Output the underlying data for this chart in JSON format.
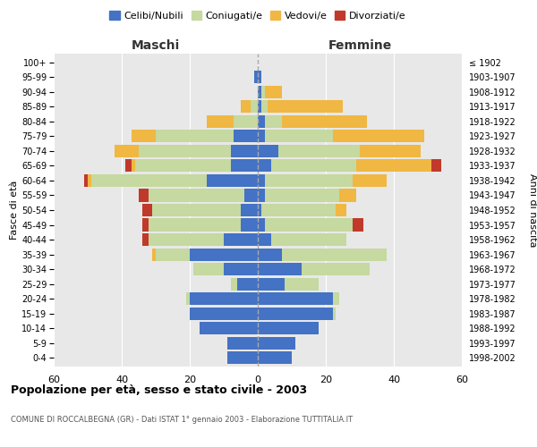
{
  "age_groups": [
    "0-4",
    "5-9",
    "10-14",
    "15-19",
    "20-24",
    "25-29",
    "30-34",
    "35-39",
    "40-44",
    "45-49",
    "50-54",
    "55-59",
    "60-64",
    "65-69",
    "70-74",
    "75-79",
    "80-84",
    "85-89",
    "90-94",
    "95-99",
    "100+"
  ],
  "birth_years": [
    "1998-2002",
    "1993-1997",
    "1988-1992",
    "1983-1987",
    "1978-1982",
    "1973-1977",
    "1968-1972",
    "1963-1967",
    "1958-1962",
    "1953-1957",
    "1948-1952",
    "1943-1947",
    "1938-1942",
    "1933-1937",
    "1928-1932",
    "1923-1927",
    "1918-1922",
    "1913-1917",
    "1908-1912",
    "1903-1907",
    "≤ 1902"
  ],
  "maschi": {
    "celibi": [
      9,
      9,
      17,
      20,
      20,
      6,
      10,
      20,
      10,
      5,
      5,
      4,
      15,
      8,
      8,
      7,
      0,
      0,
      0,
      1,
      0
    ],
    "coniugati": [
      0,
      0,
      0,
      0,
      1,
      2,
      9,
      10,
      22,
      27,
      26,
      28,
      34,
      28,
      27,
      23,
      7,
      2,
      0,
      0,
      0
    ],
    "vedovi": [
      0,
      0,
      0,
      0,
      0,
      0,
      0,
      1,
      0,
      0,
      0,
      0,
      1,
      1,
      7,
      7,
      8,
      3,
      0,
      0,
      0
    ],
    "divorziati": [
      0,
      0,
      0,
      0,
      0,
      0,
      0,
      0,
      2,
      2,
      3,
      3,
      1,
      2,
      0,
      0,
      0,
      0,
      0,
      0,
      0
    ]
  },
  "femmine": {
    "nubili": [
      10,
      11,
      18,
      22,
      22,
      8,
      13,
      7,
      4,
      2,
      1,
      2,
      2,
      4,
      6,
      2,
      2,
      1,
      1,
      1,
      0
    ],
    "coniugate": [
      0,
      0,
      0,
      1,
      2,
      10,
      20,
      31,
      22,
      26,
      22,
      22,
      26,
      25,
      24,
      20,
      5,
      2,
      1,
      0,
      0
    ],
    "vedove": [
      0,
      0,
      0,
      0,
      0,
      0,
      0,
      0,
      0,
      0,
      3,
      5,
      10,
      22,
      18,
      27,
      25,
      22,
      5,
      0,
      0
    ],
    "divorziate": [
      0,
      0,
      0,
      0,
      0,
      0,
      0,
      0,
      0,
      3,
      0,
      0,
      0,
      3,
      0,
      0,
      0,
      0,
      0,
      0,
      0
    ]
  },
  "colors": {
    "celibi": "#4472C4",
    "coniugati": "#c5d9a0",
    "vedovi": "#f0b742",
    "divorziati": "#c0392b"
  },
  "xlim": 60,
  "title": "Popolazione per età, sesso e stato civile - 2003",
  "subtitle": "COMUNE DI ROCCALBEGNA (GR) - Dati ISTAT 1° gennaio 2003 - Elaborazione TUTTITALIA.IT",
  "xlabel_left": "Maschi",
  "xlabel_right": "Femmine",
  "ylabel_left": "Fasce di età",
  "ylabel_right": "Anni di nascita",
  "legend_labels": [
    "Celibi/Nubili",
    "Coniugati/e",
    "Vedovi/e",
    "Divorziati/e"
  ],
  "bg_color": "#ffffff",
  "plot_bg_color": "#e8e8e8",
  "grid_color": "#ffffff",
  "bar_height": 0.85
}
